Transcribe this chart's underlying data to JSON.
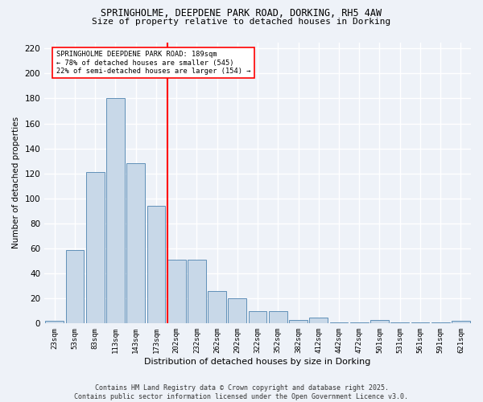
{
  "title1": "SPRINGHOLME, DEEPDENE PARK ROAD, DORKING, RH5 4AW",
  "title2": "Size of property relative to detached houses in Dorking",
  "xlabel": "Distribution of detached houses by size in Dorking",
  "ylabel": "Number of detached properties",
  "bar_labels": [
    "23sqm",
    "53sqm",
    "83sqm",
    "113sqm",
    "143sqm",
    "173sqm",
    "202sqm",
    "232sqm",
    "262sqm",
    "292sqm",
    "322sqm",
    "352sqm",
    "382sqm",
    "412sqm",
    "442sqm",
    "472sqm",
    "501sqm",
    "531sqm",
    "561sqm",
    "591sqm",
    "621sqm"
  ],
  "bar_values": [
    2,
    59,
    121,
    180,
    128,
    94,
    51,
    51,
    26,
    20,
    10,
    10,
    3,
    5,
    1,
    1,
    3,
    1,
    1,
    1,
    2
  ],
  "bar_color": "#c8d8e8",
  "bar_edge_color": "#6090b8",
  "vline_color": "red",
  "annotation_text": "SPRINGHOLME DEEPDENE PARK ROAD: 189sqm\n← 78% of detached houses are smaller (545)\n22% of semi-detached houses are larger (154) →",
  "annotation_box_color": "white",
  "annotation_box_edge": "red",
  "ylim": [
    0,
    225
  ],
  "yticks": [
    0,
    20,
    40,
    60,
    80,
    100,
    120,
    140,
    160,
    180,
    200,
    220
  ],
  "bg_color": "#eef2f8",
  "grid_color": "white",
  "footer": "Contains HM Land Registry data © Crown copyright and database right 2025.\nContains public sector information licensed under the Open Government Licence v3.0."
}
